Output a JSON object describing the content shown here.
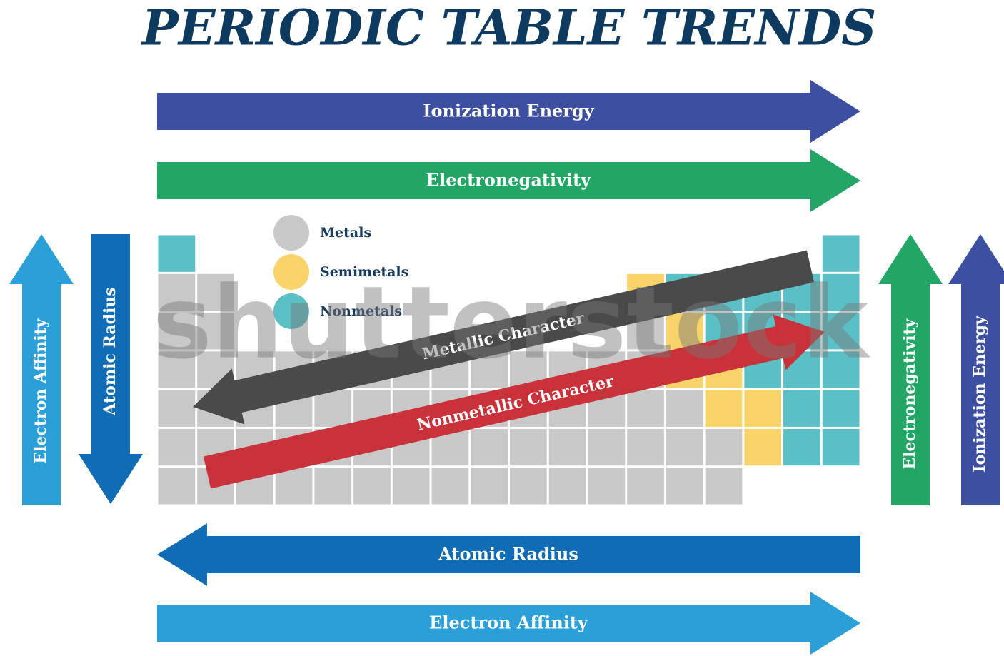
{
  "title": "PERIODIC TABLE TRENDS",
  "top_arrows": [
    "Ionization Energy",
    "Electronegativity"
  ],
  "bottom_arrows": [
    "Atomic Radius",
    "Electron Affinity"
  ],
  "left_arrows": [
    "Electron Affinity",
    "Atomic Radius"
  ],
  "right_arrows": [
    "Electronegativity",
    "Ionization Energy"
  ],
  "legend": [
    "Metals",
    "Semimetals",
    "Nonmetals"
  ],
  "diagonal_arrows": [
    "Metallic Character",
    "Nonmetallic Character"
  ],
  "watermark": "shutterstock"
}
